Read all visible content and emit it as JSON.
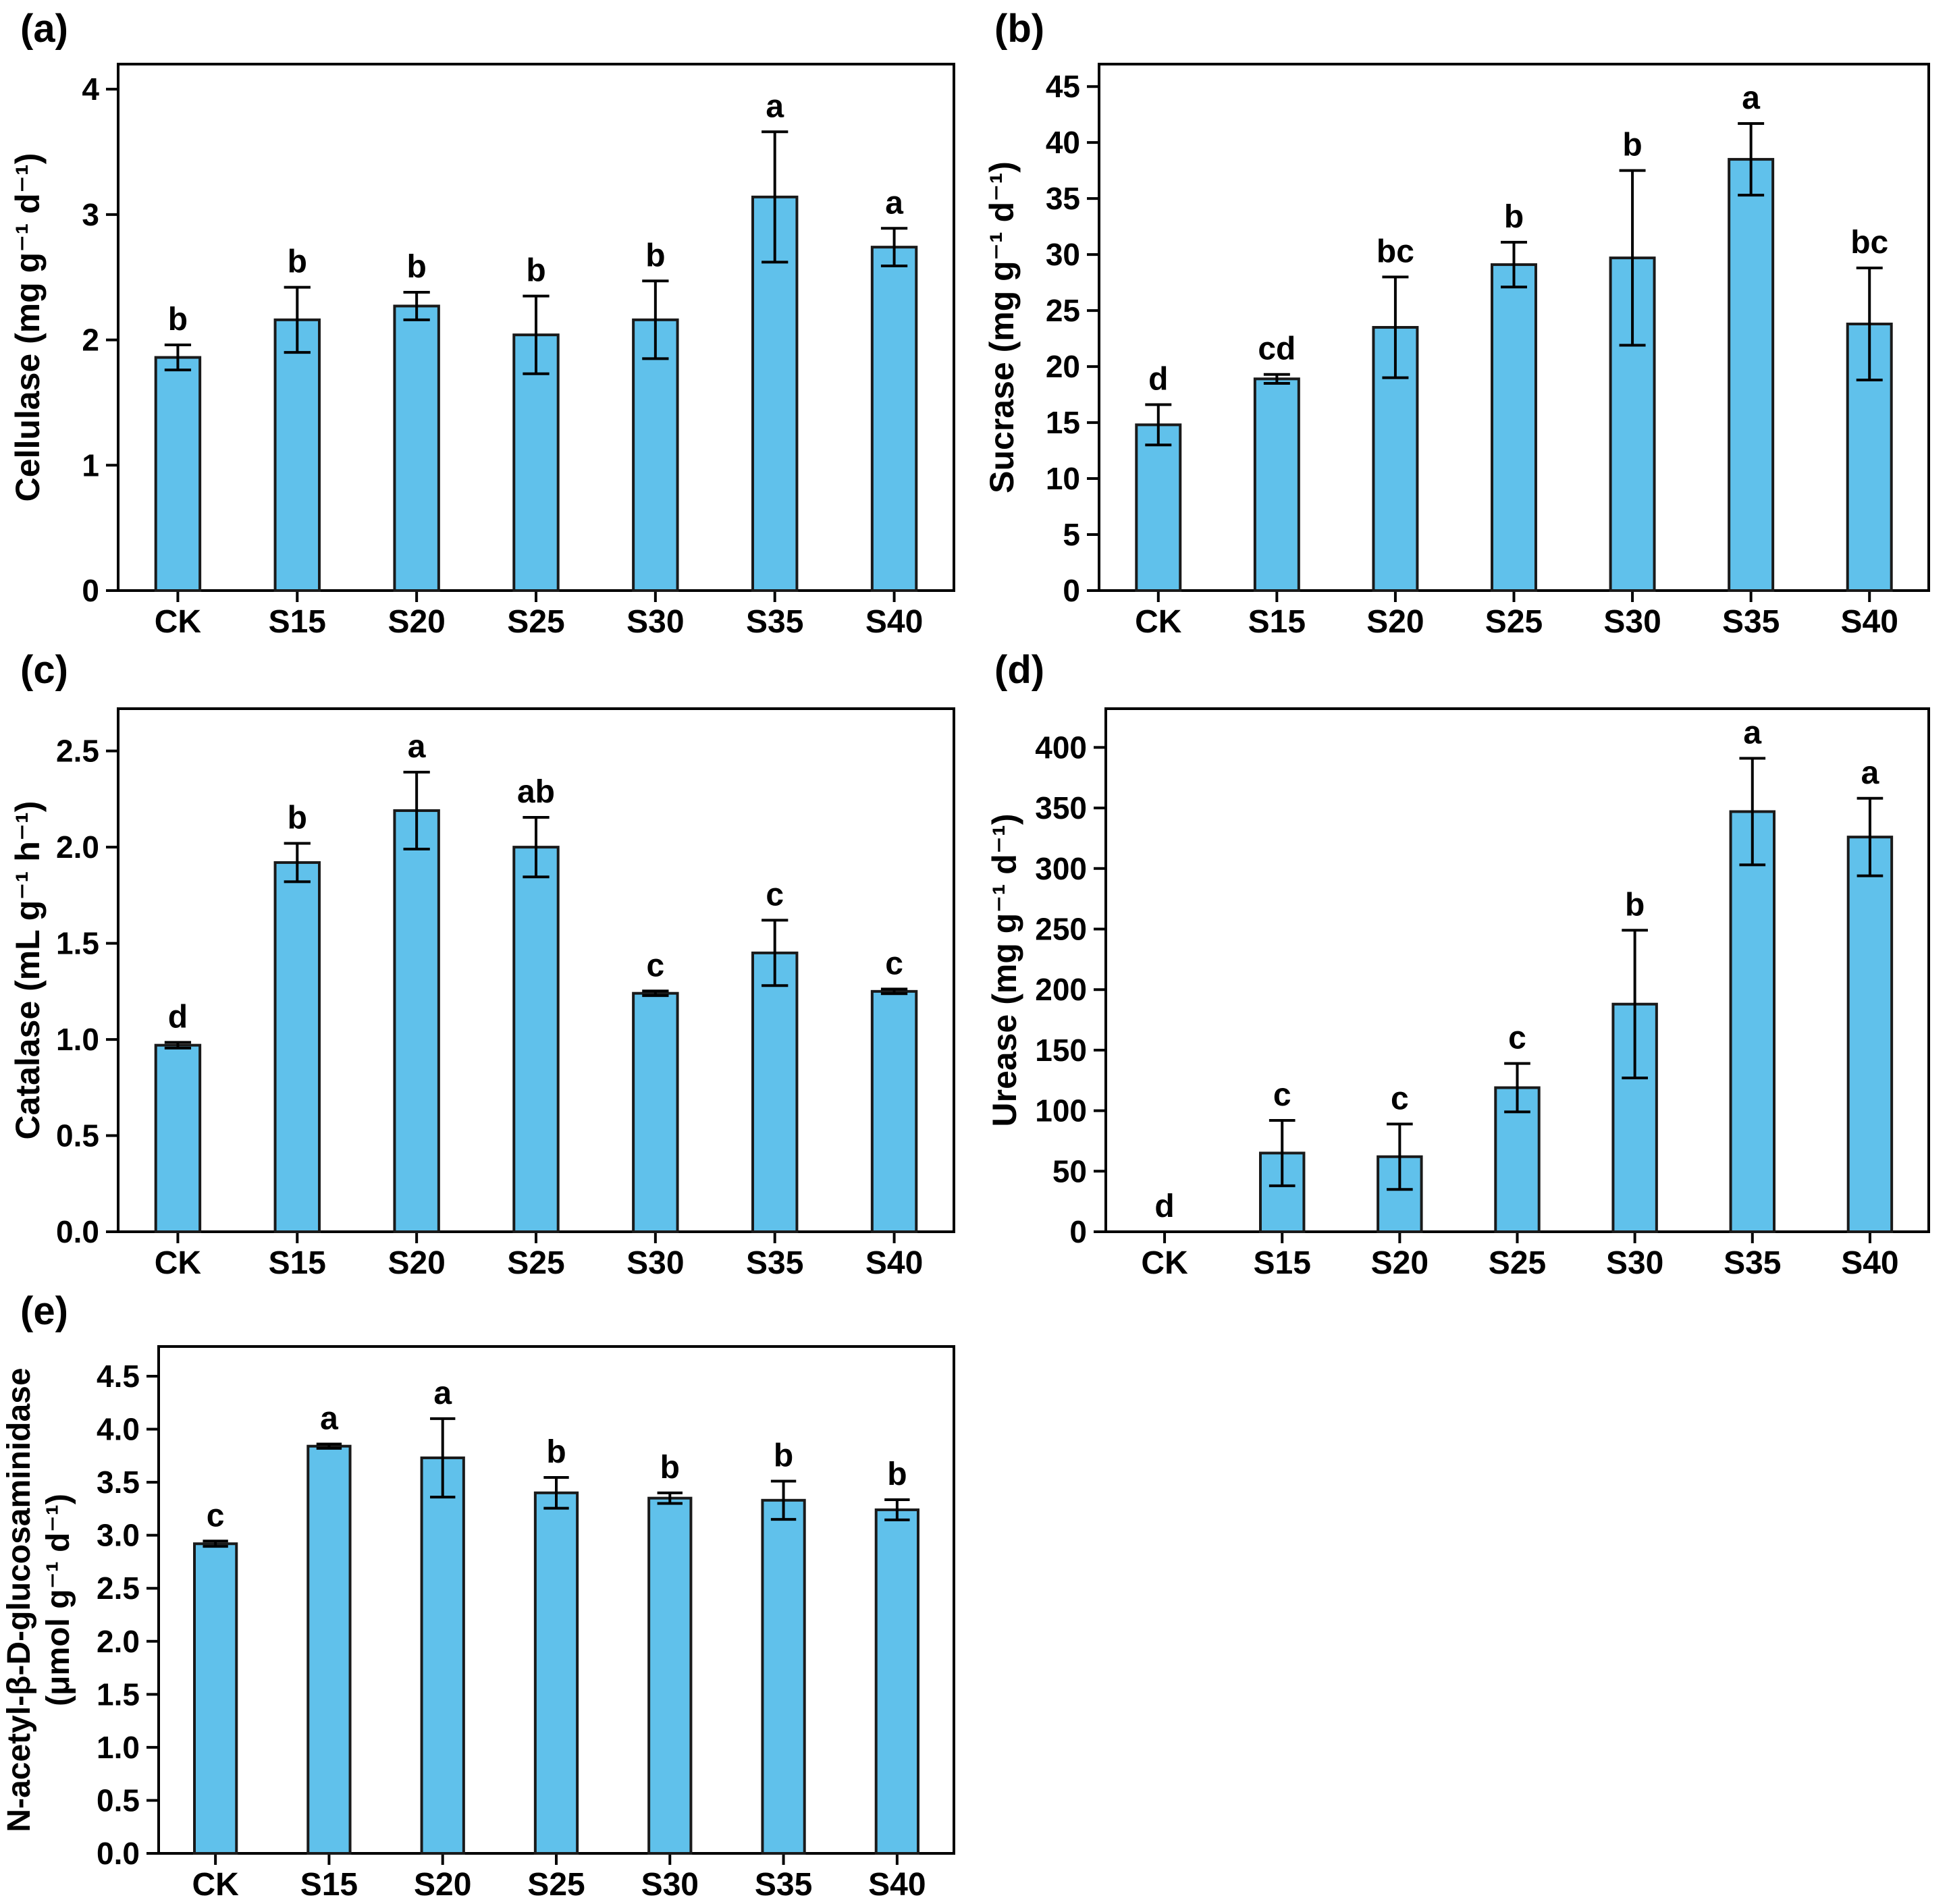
{
  "figure": {
    "background": "#ffffff",
    "bar_fill": "#60c1eb",
    "bar_edge": "#1a1a1a",
    "axis_color": "#000000",
    "text_color": "#000000"
  },
  "chart_data": [
    {
      "id": "a",
      "panel_label": "(a)",
      "type": "bar",
      "ylabel_lines": [
        "Cellulase (mg g⁻¹ d⁻¹)"
      ],
      "categories": [
        "CK",
        "S15",
        "S20",
        "S25",
        "S30",
        "S35",
        "S40"
      ],
      "values": [
        1.86,
        2.16,
        2.27,
        2.04,
        2.16,
        3.14,
        2.74
      ],
      "errors": [
        0.1,
        0.26,
        0.11,
        0.31,
        0.31,
        0.52,
        0.15
      ],
      "sig_letters": [
        "b",
        "b",
        "b",
        "b",
        "b",
        "a",
        "a"
      ],
      "yticks": [
        0,
        1,
        2,
        3,
        4
      ],
      "ytick_labels": [
        "0",
        "1",
        "2",
        "3",
        "4"
      ],
      "ylim": [
        0,
        4.2
      ],
      "grid": false,
      "legend": "none"
    },
    {
      "id": "b",
      "panel_label": "(b)",
      "type": "bar",
      "ylabel_lines": [
        "Sucrase (mg g⁻¹ d⁻¹)"
      ],
      "categories": [
        "CK",
        "S15",
        "S20",
        "S25",
        "S30",
        "S35",
        "S40"
      ],
      "values": [
        14.8,
        18.9,
        23.5,
        29.1,
        29.7,
        38.5,
        23.8
      ],
      "errors": [
        1.8,
        0.4,
        4.5,
        2.0,
        7.8,
        3.2,
        5.0
      ],
      "sig_letters": [
        "d",
        "cd",
        "bc",
        "b",
        "b",
        "a",
        "bc"
      ],
      "yticks": [
        0,
        5,
        10,
        15,
        20,
        25,
        30,
        35,
        40,
        45
      ],
      "ytick_labels": [
        "0",
        "5",
        "10",
        "15",
        "20",
        "25",
        "30",
        "35",
        "40",
        "45"
      ],
      "ylim": [
        0,
        47
      ],
      "grid": false,
      "legend": "none"
    },
    {
      "id": "c",
      "panel_label": "(c)",
      "type": "bar",
      "ylabel_lines": [
        "Catalase (mL g⁻¹ h⁻¹)"
      ],
      "categories": [
        "CK",
        "S15",
        "S20",
        "S25",
        "S30",
        "S35",
        "S40"
      ],
      "values": [
        0.97,
        1.92,
        2.19,
        2.0,
        1.24,
        1.45,
        1.25
      ],
      "errors": [
        0.015,
        0.1,
        0.2,
        0.155,
        0.012,
        0.17,
        0.012
      ],
      "sig_letters": [
        "d",
        "b",
        "a",
        "ab",
        "c",
        "c",
        "c"
      ],
      "yticks": [
        0,
        0.5,
        1.0,
        1.5,
        2.0,
        2.5
      ],
      "ytick_labels": [
        "0.0",
        "0.5",
        "1.0",
        "1.5",
        "2.0",
        "2.5"
      ],
      "ylim": [
        0,
        2.72
      ],
      "grid": false,
      "legend": "none"
    },
    {
      "id": "d",
      "panel_label": "(d)",
      "type": "bar",
      "ylabel_lines": [
        "Urease (mg g⁻¹ d⁻¹)"
      ],
      "categories": [
        "CK",
        "S15",
        "S20",
        "S25",
        "S30",
        "S35",
        "S40"
      ],
      "values": [
        0,
        65,
        62,
        119,
        188,
        347,
        326
      ],
      "errors": [
        0,
        27,
        27,
        20,
        61,
        44,
        32
      ],
      "sig_letters": [
        "d",
        "c",
        "c",
        "c",
        "b",
        "a",
        "a"
      ],
      "yticks": [
        0,
        50,
        100,
        150,
        200,
        250,
        300,
        350,
        400
      ],
      "ytick_labels": [
        "0",
        "50",
        "100",
        "150",
        "200",
        "250",
        "300",
        "350",
        "400"
      ],
      "ylim": [
        0,
        432
      ],
      "grid": false,
      "legend": "none"
    },
    {
      "id": "e",
      "panel_label": "(e)",
      "type": "bar",
      "ylabel_lines": [
        "N-acetyl-β-D-glucosaminidase",
        "(μmol g⁻¹ d⁻¹)"
      ],
      "categories": [
        "CK",
        "S15",
        "S20",
        "S25",
        "S30",
        "S35",
        "S40"
      ],
      "values": [
        2.92,
        3.84,
        3.73,
        3.4,
        3.35,
        3.33,
        3.24
      ],
      "errors": [
        0.025,
        0.02,
        0.37,
        0.145,
        0.05,
        0.18,
        0.095
      ],
      "sig_letters": [
        "c",
        "a",
        "a",
        "b",
        "b",
        "b",
        "b"
      ],
      "yticks": [
        0,
        0.5,
        1.0,
        1.5,
        2.0,
        2.5,
        3.0,
        3.5,
        4.0,
        4.5
      ],
      "ytick_labels": [
        "0.0",
        "0.5",
        "1.0",
        "1.5",
        "2.0",
        "2.5",
        "3.0",
        "3.5",
        "4.0",
        "4.5"
      ],
      "ylim": [
        0,
        4.78
      ],
      "grid": false,
      "legend": "none"
    }
  ]
}
